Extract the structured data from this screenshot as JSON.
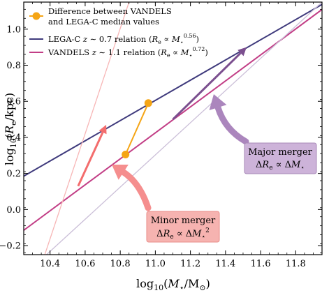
{
  "chart_data": {
    "type": "line",
    "xlabel": "log10(M⋆/M⊙)",
    "ylabel": "log10(Re/kpc)",
    "xlim": [
      10.25,
      11.95
    ],
    "ylim": [
      -0.25,
      1.15
    ],
    "x_ticks": [
      "10.4",
      "10.6",
      "10.8",
      "11.0",
      "11.2",
      "11.4",
      "11.6",
      "11.8"
    ],
    "y_ticks": [
      "−0.2",
      "0.0",
      "0.2",
      "0.4",
      "0.6",
      "0.8",
      "1.0"
    ],
    "grid": false,
    "legend_position": "top-left",
    "colors": {
      "lega_c": "#3f3a7c",
      "vandels": "#c23e86",
      "difference": "#f5a515",
      "minor": "#f36d6d",
      "major": "#7b4f8f",
      "major_box": "#cdb3d9",
      "minor_box": "#f6b3b0"
    },
    "series": [
      {
        "name": "LEGA-C z ∼ 0.7 relation (Re ∝ M⋆^0.56)",
        "color": "#3f3a7c",
        "x": [
          10.25,
          11.95
        ],
        "y": [
          0.185,
          1.137
        ]
      },
      {
        "name": "VANDELS z ∼ 1.1 relation (Re ∝ M⋆^0.72)",
        "color": "#c23e86",
        "x": [
          10.25,
          11.95
        ],
        "y": [
          -0.115,
          1.109
        ]
      },
      {
        "name": "Difference between VANDELS and LEGA-C median values",
        "color": "#f5a515",
        "x": [
          10.83,
          10.96
        ],
        "y": [
          0.305,
          0.59
        ]
      },
      {
        "name": "",
        "color": "#f7b6b6",
        "x": [
          10.37,
          10.85
        ],
        "y": [
          -0.25,
          1.15
        ]
      },
      {
        "name": "",
        "color": "#cbbfd8",
        "x": [
          10.38,
          11.95
        ],
        "y": [
          -0.25,
          1.15
        ]
      }
    ],
    "arrows": [
      {
        "id": "minor-merger-arrow",
        "color": "#f36d6d",
        "from": [
          10.56,
          0.13
        ],
        "to": [
          10.72,
          0.47
        ]
      },
      {
        "id": "major-merger-arrow",
        "color": "#7b4f8f",
        "from": [
          11.1,
          0.5
        ],
        "to": [
          11.52,
          0.9
        ]
      }
    ],
    "legend": {
      "difference_line1": "Difference between VANDELS",
      "difference_line2": "and LEGA-C median values",
      "lega_c": "LEGA-C z ∼ 0.7 relation (Re ∝ M⋆^0.56)",
      "vandels": "VANDELS z ∼ 1.1 relation (Re ∝ M⋆^0.72)"
    },
    "annotations": {
      "major_title": "Major merger",
      "major_relation": "ΔRe ∝ ΔM⋆",
      "minor_title": "Minor merger",
      "minor_relation": "ΔRe ∝ ΔM⋆²"
    }
  }
}
